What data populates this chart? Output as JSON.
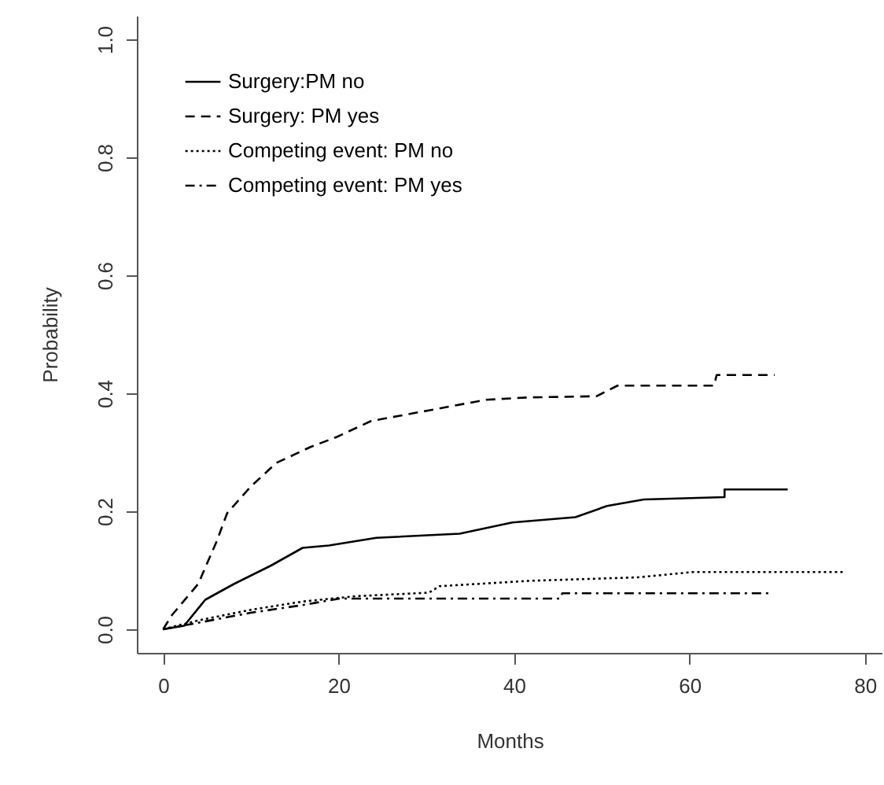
{
  "chart_data": {
    "type": "line",
    "xlabel": "Months",
    "ylabel": "Probability",
    "xlim": [
      -3,
      82
    ],
    "ylim": [
      -0.04,
      1.04
    ],
    "xticks": [
      0,
      20,
      40,
      60,
      80
    ],
    "yticks": [
      {
        "value": 0,
        "label": "0.0"
      },
      {
        "value": 0.2,
        "label": "0.2"
      },
      {
        "value": 0.4,
        "label": "0.4"
      },
      {
        "value": 0.6,
        "label": "0.6"
      },
      {
        "value": 0.8,
        "label": "0.8"
      },
      {
        "value": 1,
        "label": "1.0"
      }
    ],
    "grid": false,
    "legend": "top left",
    "series": [
      {
        "name": "Surgery:PM no",
        "color": "#000000",
        "line_style": "solid",
        "x": [
          0,
          2.4,
          4.8,
          8.1,
          12.3,
          15.9,
          18.9,
          24.3,
          33.8,
          39.8,
          47.0,
          50.6,
          54.8,
          64.0,
          64.0,
          71.2
        ],
        "values": [
          0,
          0.006,
          0.05,
          0.077,
          0.108,
          0.138,
          0.142,
          0.155,
          0.162,
          0.181,
          0.19,
          0.209,
          0.22,
          0.224,
          0.237,
          0.237
        ]
      },
      {
        "name": "Surgery: PM yes",
        "color": "#000000",
        "line_style": "dashed",
        "x": [
          0,
          1.0,
          4.0,
          6.1,
          7.3,
          10.0,
          12.9,
          16.8,
          19.8,
          23.7,
          30.3,
          36.8,
          41.6,
          49.4,
          51.8,
          62.8,
          63.1,
          69.7
        ],
        "values": [
          0,
          0.024,
          0.077,
          0.149,
          0.197,
          0.242,
          0.282,
          0.309,
          0.326,
          0.353,
          0.371,
          0.389,
          0.393,
          0.395,
          0.413,
          0.413,
          0.431,
          0.431
        ]
      },
      {
        "name": "Competing event: PM no",
        "color": "#000000",
        "line_style": "dotted",
        "x": [
          0,
          4.0,
          10.0,
          15.9,
          21.9,
          30.3,
          31.5,
          41.6,
          54.1,
          60.4,
          77.7
        ],
        "values": [
          0,
          0.015,
          0.033,
          0.047,
          0.056,
          0.062,
          0.073,
          0.082,
          0.088,
          0.097,
          0.097
        ]
      },
      {
        "name": "Competing event: PM yes",
        "color": "#000000",
        "line_style": "dashdot",
        "x": [
          0,
          4.0,
          10.0,
          15.9,
          20.1,
          45.2,
          45.5,
          69.1
        ],
        "values": [
          0,
          0.011,
          0.028,
          0.041,
          0.052,
          0.052,
          0.061,
          0.061
        ]
      }
    ]
  }
}
